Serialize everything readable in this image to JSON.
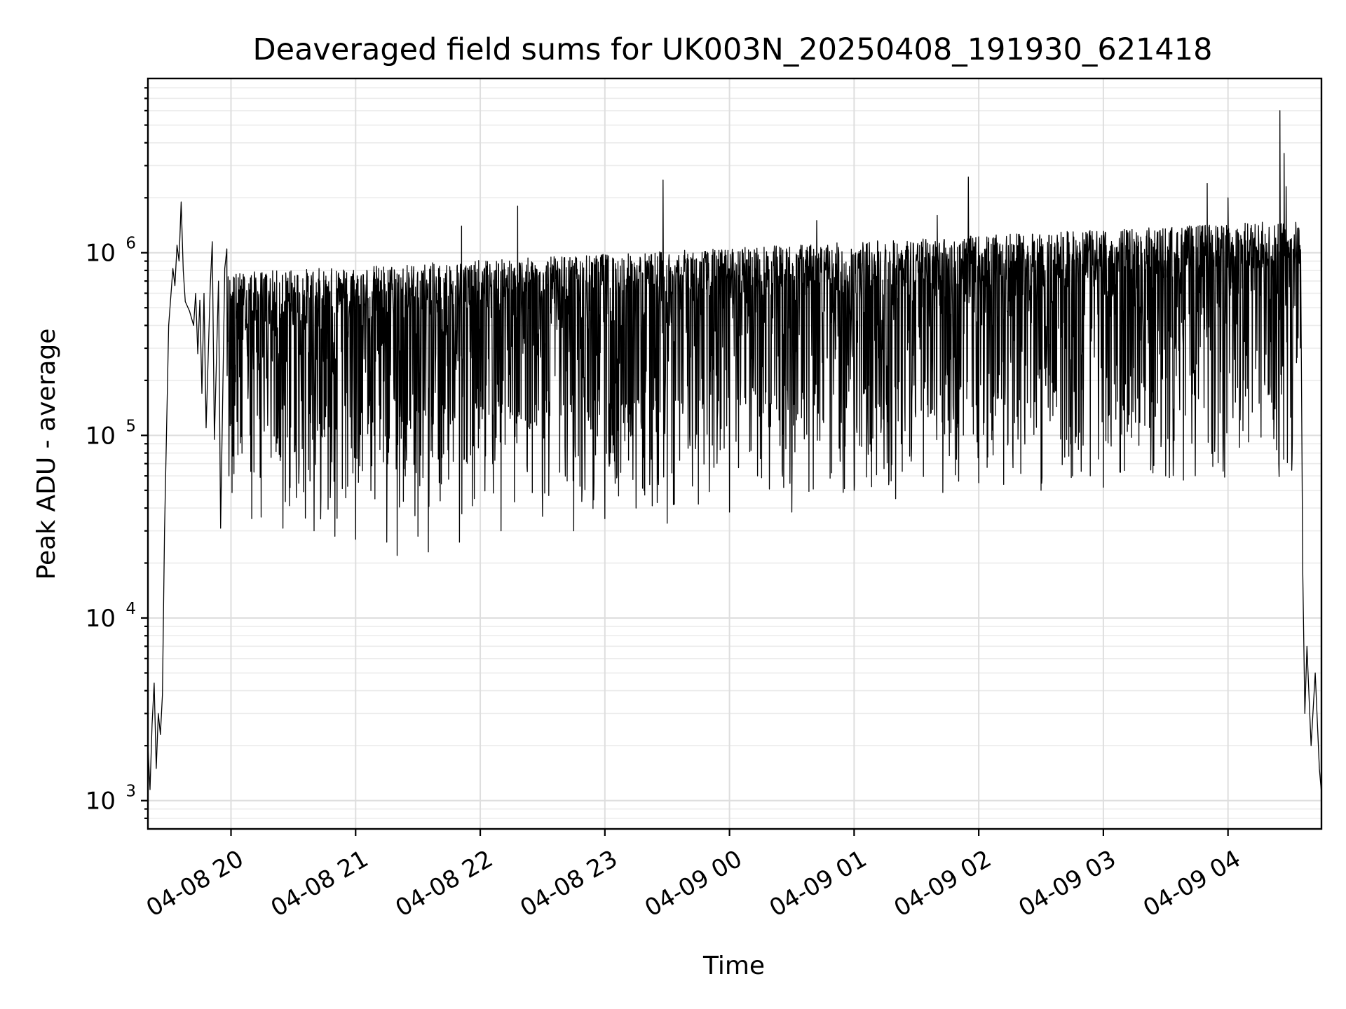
{
  "chart_data": {
    "type": "line",
    "title": "Deaveraged field sums for UK003N_20250408_191930_621418",
    "xlabel": "Time",
    "ylabel": "Peak ADU - average",
    "yscale": "log",
    "xlim": [
      "2025-04-08 19:20",
      "2025-04-09 04:45"
    ],
    "ylim": [
      700,
      9000000
    ],
    "grid": true,
    "x_ticks": [
      {
        "value": "2025-04-08 20:00",
        "label": "04-08 20"
      },
      {
        "value": "2025-04-08 21:00",
        "label": "04-08 21"
      },
      {
        "value": "2025-04-08 22:00",
        "label": "04-08 22"
      },
      {
        "value": "2025-04-08 23:00",
        "label": "04-08 23"
      },
      {
        "value": "2025-04-09 00:00",
        "label": "04-09 00"
      },
      {
        "value": "2025-04-09 01:00",
        "label": "04-09 01"
      },
      {
        "value": "2025-04-09 02:00",
        "label": "04-09 02"
      },
      {
        "value": "2025-04-09 03:00",
        "label": "04-09 03"
      },
      {
        "value": "2025-04-09 04:00",
        "label": "04-09 04"
      }
    ],
    "y_ticks": [
      {
        "value": 1000,
        "base": "10",
        "exp": "3"
      },
      {
        "value": 10000,
        "base": "10",
        "exp": "4"
      },
      {
        "value": 100000,
        "base": "10",
        "exp": "5"
      },
      {
        "value": 1000000,
        "base": "10",
        "exp": "6"
      }
    ],
    "series": [
      {
        "color": "#000000",
        "points": [
          [
            "2025-04-08 19:20",
            2000
          ],
          [
            "2025-04-08 19:21",
            1150
          ],
          [
            "2025-04-08 19:22",
            2600
          ],
          [
            "2025-04-08 19:23",
            4400
          ],
          [
            "2025-04-08 19:24",
            1500
          ],
          [
            "2025-04-08 19:25",
            3000
          ],
          [
            "2025-04-08 19:26",
            2300
          ],
          [
            "2025-04-08 19:27",
            3800
          ],
          [
            "2025-04-08 19:28",
            30000
          ],
          [
            "2025-04-08 19:30",
            400000
          ],
          [
            "2025-04-08 19:32",
            820000
          ],
          [
            "2025-04-08 19:33",
            660000
          ],
          [
            "2025-04-08 19:34",
            1100000
          ],
          [
            "2025-04-08 19:35",
            900000
          ],
          [
            "2025-04-08 19:36",
            1900000
          ],
          [
            "2025-04-08 19:37",
            800000
          ],
          [
            "2025-04-08 19:38",
            540000
          ],
          [
            "2025-04-08 19:40",
            480000
          ],
          [
            "2025-04-08 19:42",
            400000
          ],
          [
            "2025-04-08 19:43",
            600000
          ],
          [
            "2025-04-08 19:44",
            280000
          ],
          [
            "2025-04-08 19:45",
            550000
          ],
          [
            "2025-04-08 19:46",
            170000
          ],
          [
            "2025-04-08 19:47",
            600000
          ],
          [
            "2025-04-08 19:48",
            110000
          ],
          [
            "2025-04-08 19:50",
            650000
          ],
          [
            "2025-04-08 19:51",
            1150000
          ],
          [
            "2025-04-08 19:52",
            95000
          ],
          [
            "2025-04-08 19:54",
            700000
          ],
          [
            "2025-04-08 19:55",
            31000
          ],
          [
            "2025-04-08 19:57",
            820000
          ],
          [
            "2025-04-08 19:58",
            1050000
          ],
          [
            "2025-04-08 19:59",
            60000
          ],
          [
            "2025-04-08 20:10",
            35000
          ],
          [
            "2025-04-08 20:25",
            31000
          ],
          [
            "2025-04-08 20:40",
            30000
          ],
          [
            "2025-04-08 20:50",
            28000
          ],
          [
            "2025-04-08 21:00",
            27000
          ],
          [
            "2025-04-08 21:15",
            26000
          ],
          [
            "2025-04-08 21:20",
            22000
          ],
          [
            "2025-04-08 21:30",
            28000
          ],
          [
            "2025-04-08 21:35",
            23000
          ],
          [
            "2025-04-08 21:50",
            26000
          ],
          [
            "2025-04-08 21:51",
            1400000
          ],
          [
            "2025-04-08 22:10",
            30000
          ],
          [
            "2025-04-08 22:18",
            1800000
          ],
          [
            "2025-04-08 22:30",
            36000
          ],
          [
            "2025-04-08 22:45",
            30000
          ],
          [
            "2025-04-08 23:00",
            35000
          ],
          [
            "2025-04-08 23:15",
            40000
          ],
          [
            "2025-04-08 23:28",
            2500000
          ],
          [
            "2025-04-08 23:30",
            33000
          ],
          [
            "2025-04-08 23:45",
            42000
          ],
          [
            "2025-04-09 00:00",
            38000
          ],
          [
            "2025-04-09 00:30",
            38000
          ],
          [
            "2025-04-09 00:42",
            1500000
          ],
          [
            "2025-04-09 01:00",
            50000
          ],
          [
            "2025-04-09 01:20",
            45000
          ],
          [
            "2025-04-09 01:40",
            1600000
          ],
          [
            "2025-04-09 01:55",
            2600000
          ],
          [
            "2025-04-09 02:00",
            55000
          ],
          [
            "2025-04-09 02:30",
            50000
          ],
          [
            "2025-04-09 03:00",
            52000
          ],
          [
            "2025-04-09 03:30",
            60000
          ],
          [
            "2025-04-09 03:50",
            2400000
          ],
          [
            "2025-04-09 04:00",
            2000000
          ],
          [
            "2025-04-09 04:15",
            150000
          ],
          [
            "2025-04-09 04:25",
            6000000
          ],
          [
            "2025-04-09 04:27",
            3500000
          ],
          [
            "2025-04-09 04:28",
            2300000
          ],
          [
            "2025-04-09 04:33",
            250000
          ],
          [
            "2025-04-09 04:35",
            900000
          ],
          [
            "2025-04-09 04:36",
            18000
          ],
          [
            "2025-04-09 04:37",
            3000
          ],
          [
            "2025-04-09 04:38",
            7000
          ],
          [
            "2025-04-09 04:40",
            2000
          ],
          [
            "2025-04-09 04:42",
            5000
          ],
          [
            "2025-04-09 04:44",
            1500
          ],
          [
            "2025-04-09 04:45",
            1100
          ]
        ]
      }
    ]
  }
}
